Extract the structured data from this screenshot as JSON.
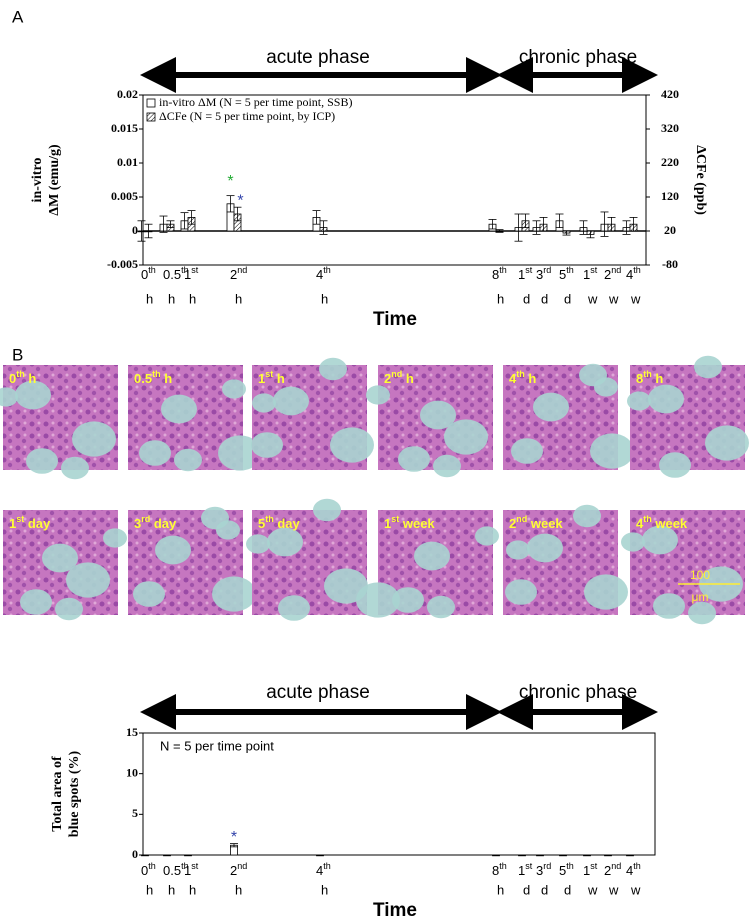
{
  "panel_labels": [
    "A",
    "B"
  ],
  "image_labels": [
    {
      "number": "0",
      "suffix": "th",
      "unit": " h"
    },
    {
      "number": "0.5",
      "suffix": "th",
      "unit": " h"
    },
    {
      "number": "1",
      "suffix": "st",
      "unit": " h"
    },
    {
      "number": "2",
      "suffix": "nd",
      "unit": " h"
    },
    {
      "number": "4",
      "suffix": "th",
      "unit": " h"
    },
    {
      "number": "8",
      "suffix": "th",
      "unit": " h"
    },
    {
      "number": "1",
      "suffix": "st",
      "unit": " day"
    },
    {
      "number": "3",
      "suffix": "rd",
      "unit": " day"
    },
    {
      "number": "5",
      "suffix": "th",
      "unit": " day"
    },
    {
      "number": "1",
      "suffix": "st",
      "unit": " week"
    },
    {
      "number": "2",
      "suffix": "nd",
      "unit": " week"
    },
    {
      "number": "4",
      "suffix": "th",
      "unit": " week"
    }
  ],
  "scale_bar": [
    "100",
    "μm"
  ],
  "chart_data": [
    {
      "type": "bar",
      "phases": [
        "acute phase",
        "chronic phase"
      ],
      "category_numbers": [
        "0",
        "0.5",
        "1",
        "2",
        "4",
        "8",
        "1",
        "3",
        "5",
        "1",
        "2",
        "4"
      ],
      "category_suffixes": [
        "th",
        "th",
        "st",
        "nd",
        "th",
        "th",
        "st",
        "rd",
        "th",
        "st",
        "nd",
        "th"
      ],
      "category_units": [
        "h",
        "h",
        "h",
        "h",
        "h",
        "h",
        "d",
        "d",
        "d",
        "w",
        "w",
        "w"
      ],
      "x_label": "Time",
      "y_label": [
        "in-vitro",
        "ΔM (emu/g)"
      ],
      "y2_label": "ΔCFe (ppb)",
      "ylim": [
        -0.005,
        0.02
      ],
      "yticks": [
        -0.005,
        0,
        0.005,
        0.01,
        0.015,
        0.02
      ],
      "y2lim": [
        -80,
        420
      ],
      "y2ticks": [
        -80,
        20,
        120,
        220,
        320,
        420
      ],
      "series": [
        {
          "name": "in-vitro ΔM (N = 5 per time point, SSB)",
          "color": "#ffffff",
          "values": [
            0,
            0.001,
            0.0015,
            0.004,
            0.002,
            0.001,
            0.0005,
            0.0005,
            0.0015,
            0.0005,
            0.001,
            0.0005
          ],
          "errors": [
            0.0015,
            0.0012,
            0.0012,
            0.0012,
            0.001,
            0.0007,
            0.002,
            0.001,
            0.001,
            0.001,
            0.0018,
            0.001
          ]
        },
        {
          "name": "ΔCFe (N = 5 per time point, by ICP)",
          "color": "hatched",
          "axis": "y2",
          "values": [
            20,
            40,
            60,
            70,
            30,
            20,
            50,
            40,
            14,
            10,
            40,
            40
          ],
          "errors": [
            20,
            10,
            20,
            20,
            20,
            4,
            20,
            20,
            6,
            10,
            20,
            20
          ]
        }
      ],
      "markers": [
        {
          "text": "*",
          "category": 3,
          "series": 0,
          "color": "#22aa33"
        },
        {
          "text": "*",
          "category": 3,
          "series": 1,
          "color": "#3344aa"
        }
      ]
    },
    {
      "type": "bar",
      "phases": [
        "acute phase",
        "chronic phase"
      ],
      "category_numbers": [
        "0",
        "0.5",
        "1",
        "2",
        "4",
        "8",
        "1",
        "3",
        "5",
        "1",
        "2",
        "4"
      ],
      "category_suffixes": [
        "th",
        "th",
        "st",
        "nd",
        "th",
        "th",
        "st",
        "rd",
        "th",
        "st",
        "nd",
        "th"
      ],
      "category_units": [
        "h",
        "h",
        "h",
        "h",
        "h",
        "h",
        "d",
        "d",
        "d",
        "w",
        "w",
        "w"
      ],
      "x_label": "Time",
      "y_label": [
        "Total area of",
        "blue spots (%)"
      ],
      "annotation": "N = 5 per time point",
      "ylim": [
        0,
        15
      ],
      "yticks": [
        0,
        5,
        10,
        15
      ],
      "series": [
        {
          "color": "#ffffff",
          "values": [
            0,
            0,
            0,
            1.2,
            0,
            0,
            0,
            0,
            0,
            0,
            0,
            0
          ],
          "errors": [
            0,
            0,
            0,
            0.2,
            0,
            0,
            0,
            0,
            0,
            0,
            0,
            0
          ]
        }
      ],
      "markers": [
        {
          "text": "*",
          "category": 3,
          "series": 0,
          "color": "#3344aa"
        }
      ]
    }
  ]
}
